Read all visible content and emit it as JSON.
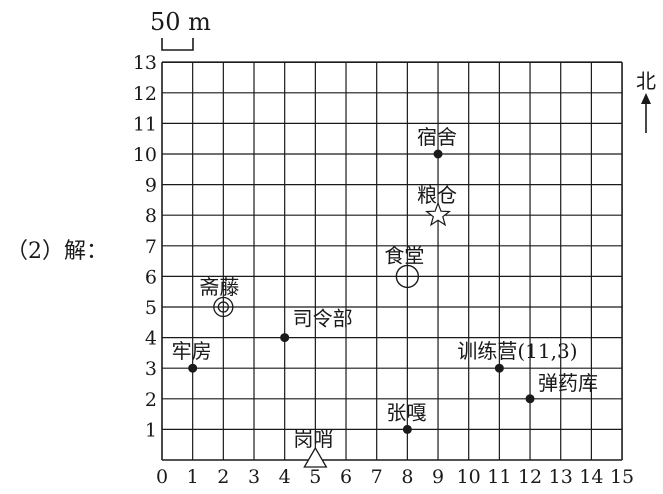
{
  "prefix_label": "（2）解：",
  "scale_label": "50 m",
  "north_label": "北",
  "chart_data": {
    "type": "scatter",
    "title": "",
    "xlim": [
      0,
      15
    ],
    "ylim": [
      0,
      13
    ],
    "grid": true,
    "x_ticks": [
      "0",
      "1",
      "2",
      "3",
      "4",
      "5",
      "6",
      "7",
      "8",
      "9",
      "10",
      "11",
      "12",
      "13",
      "14",
      "15"
    ],
    "y_ticks": [
      "1",
      "2",
      "3",
      "4",
      "5",
      "6",
      "7",
      "8",
      "9",
      "10",
      "11",
      "12",
      "13"
    ],
    "points": [
      {
        "label": "宿舍",
        "x": 9,
        "y": 10,
        "marker": "dot"
      },
      {
        "label": "粮仓",
        "x": 9,
        "y": 8,
        "marker": "star"
      },
      {
        "label": "食堂",
        "x": 8,
        "y": 6,
        "marker": "circle"
      },
      {
        "label": "斋藤",
        "x": 2,
        "y": 5,
        "marker": "double-circle"
      },
      {
        "label": "司令部",
        "x": 4,
        "y": 4,
        "marker": "dot"
      },
      {
        "label": "牢房",
        "x": 1,
        "y": 3,
        "marker": "dot"
      },
      {
        "label": "训练营(11,3)",
        "x": 11,
        "y": 3,
        "marker": "dot"
      },
      {
        "label": "弹药库",
        "x": 12,
        "y": 2,
        "marker": "dot"
      },
      {
        "label": "张嘎",
        "x": 8,
        "y": 1,
        "marker": "dot"
      },
      {
        "label": "岗哨",
        "x": 5,
        "y": 0,
        "marker": "triangle"
      }
    ]
  }
}
